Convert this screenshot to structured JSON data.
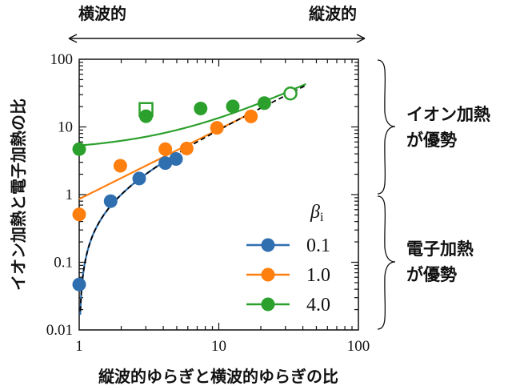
{
  "top_labels": {
    "left": "横波的",
    "right": "縦波的"
  },
  "side_labels": {
    "upper": [
      "イオン加熱",
      "が優勢"
    ],
    "lower": [
      "電子加熱",
      "が優勢"
    ]
  },
  "colors": {
    "beta_0.1": "#2f6fb0",
    "beta_1.0": "#ff7f0e",
    "beta_4.0": "#2ca02c",
    "reference": "#000000"
  },
  "chart_data": {
    "type": "scatter",
    "xlabel": "縦波的ゆらぎと横波的ゆらぎの比",
    "ylabel": "イオン加熱と電子加熱の比",
    "xscale": "log",
    "yscale": "log",
    "xlim": [
      1,
      100
    ],
    "ylim": [
      0.01,
      100
    ],
    "xticks": [
      "1",
      "10",
      "100"
    ],
    "yticks": [
      "0.01",
      "0.1",
      "1",
      "10",
      "100"
    ],
    "grid": false,
    "legend": {
      "title": "β",
      "title_subscript": "i",
      "placement": "lower-right"
    },
    "series": [
      {
        "name": "0.1",
        "color": "#2f6fb0",
        "points": [
          [
            1.0,
            0.047
          ],
          [
            1.68,
            0.8
          ],
          [
            2.69,
            1.73
          ],
          [
            4.14,
            2.92
          ],
          [
            4.94,
            3.36
          ]
        ],
        "fit": "y = x - 1",
        "fit_range": [
          1,
          5
        ]
      },
      {
        "name": "1.0",
        "color": "#ff7f0e",
        "points": [
          [
            1.0,
            0.51
          ],
          [
            1.97,
            2.67
          ],
          [
            4.14,
            4.7
          ],
          [
            5.89,
            4.8
          ],
          [
            9.7,
            9.7
          ],
          [
            17,
            14.3
          ]
        ],
        "fit": "y = 0.86 x^1.03",
        "fit_range": [
          1,
          18
        ]
      },
      {
        "name": "4.0",
        "color": "#2ca02c",
        "points": [
          [
            1.0,
            4.7
          ],
          [
            3.01,
            14.4
          ],
          [
            7.41,
            18.7
          ],
          [
            12.6,
            20.1
          ],
          [
            21.2,
            22.5
          ]
        ],
        "open_points": [
          {
            "marker": "square",
            "x": 3.01,
            "y": 18.1
          },
          {
            "marker": "circle",
            "x": 32.6,
            "y": 31.2
          }
        ],
        "fit": "y = 4.4 + 0.92 x",
        "fit_range": [
          1,
          42
        ]
      }
    ],
    "reference_line": {
      "style": "dashed",
      "fit": "y = x - 1",
      "range": [
        1,
        42
      ]
    }
  }
}
